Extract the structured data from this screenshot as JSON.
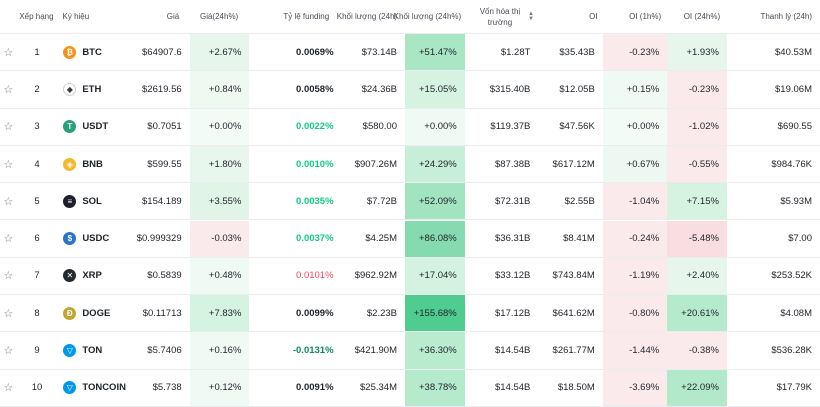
{
  "header": {
    "rank": "Xếp hạng",
    "symbol": "Ký hiệu",
    "price": "Giá",
    "change": "Giá(24h%)",
    "funding": "Tỷ lệ funding",
    "volume": "Khối lượng (24h)",
    "volume_change": "Khối lượng (24h%)",
    "market_cap": "Vốn hóa thị trường",
    "oi": "OI",
    "oi_1h": "OI (1h%)",
    "oi_24h": "OI (24h%)",
    "liquidation": "Thanh lý (24h)"
  },
  "colors": {
    "pos_light": "#ebf8f0",
    "pos_mid": "#d4f3e1",
    "pos_strong": "#a8e6c4",
    "pos_max": "#5ed29a",
    "neg_light": "#fbeaec",
    "funding_pos": "#0ecb81",
    "funding_neg": "#f6465d"
  },
  "rows": [
    {
      "rank": "1",
      "symbol": "BTC",
      "icon": "btc-icon",
      "icon_color": "#f7931a",
      "glyph": "₿",
      "price": "$64907.6",
      "change": "+2.67%",
      "change_bg": "#e6f6ec",
      "funding": "0.0069%",
      "funding_tone": "dark",
      "volume": "$73.14B",
      "volume_change": "+51.47%",
      "volume_change_bg": "#a8e6c4",
      "market_cap": "$1.28T",
      "oi": "$35.43B",
      "oi_1h": "-0.23%",
      "oi_1h_bg": "#fbeaec",
      "oi_24h": "+1.93%",
      "oi_24h_bg": "#e6f6ec",
      "liquidation": "$40.53M"
    },
    {
      "rank": "2",
      "symbol": "ETH",
      "icon": "eth-icon",
      "icon_color": "#ffffff",
      "glyph": "◆",
      "price": "$2619.56",
      "change": "+0.84%",
      "change_bg": "#eef9f2",
      "funding": "0.0058%",
      "funding_tone": "dark",
      "volume": "$24.36B",
      "volume_change": "+15.05%",
      "volume_change_bg": "#d6f3e2",
      "market_cap": "$315.40B",
      "oi": "$12.05B",
      "oi_1h": "+0.15%",
      "oi_1h_bg": "#f0faf4",
      "oi_24h": "-0.23%",
      "oi_24h_bg": "#fbeaec",
      "liquidation": "$19.06M"
    },
    {
      "rank": "3",
      "symbol": "USDT",
      "icon": "usdt-icon",
      "icon_color": "#26a17b",
      "glyph": "T",
      "price": "$0.7051",
      "change": "+0.00%",
      "change_bg": "#f3fbf6",
      "funding": "0.0022%",
      "funding_tone": "pos",
      "volume": "$580.00",
      "volume_change": "+0.00%",
      "volume_change_bg": "#f0faf4",
      "market_cap": "$119.37B",
      "oi": "$47.56K",
      "oi_1h": "+0.00%",
      "oi_1h_bg": "#f3fbf6",
      "oi_24h": "-1.02%",
      "oi_24h_bg": "#fbeaec",
      "liquidation": "$690.55"
    },
    {
      "rank": "4",
      "symbol": "BNB",
      "icon": "bnb-icon",
      "icon_color": "#f3ba2f",
      "glyph": "◈",
      "price": "$599.55",
      "change": "+1.80%",
      "change_bg": "#e8f7ee",
      "funding": "0.0010%",
      "funding_tone": "pos",
      "volume": "$907.26M",
      "volume_change": "+24.29%",
      "volume_change_bg": "#c6eed8",
      "market_cap": "$87.38B",
      "oi": "$617.12M",
      "oi_1h": "+0.67%",
      "oi_1h_bg": "#ecf8f1",
      "oi_24h": "-0.55%",
      "oi_24h_bg": "#fbeaec",
      "liquidation": "$984.76K"
    },
    {
      "rank": "5",
      "symbol": "SOL",
      "icon": "sol-icon",
      "icon_color": "#1e1e2e",
      "glyph": "≡",
      "price": "$154.189",
      "change": "+3.55%",
      "change_bg": "#e0f4e8",
      "funding": "0.0035%",
      "funding_tone": "pos",
      "volume": "$7.72B",
      "volume_change": "+52.09%",
      "volume_change_bg": "#a3e4c0",
      "market_cap": "$72.31B",
      "oi": "$2.55B",
      "oi_1h": "-1.04%",
      "oi_1h_bg": "#fbeaec",
      "oi_24h": "+7.15%",
      "oi_24h_bg": "#d6f3e2",
      "liquidation": "$5.93M"
    },
    {
      "rank": "6",
      "symbol": "USDC",
      "icon": "usdc-icon",
      "icon_color": "#2775ca",
      "glyph": "$",
      "price": "$0.999329",
      "change": "-0.03%",
      "change_bg": "#fbeaec",
      "funding": "0.0037%",
      "funding_tone": "pos",
      "volume": "$4.25M",
      "volume_change": "+86.08%",
      "volume_change_bg": "#86daaf",
      "market_cap": "$36.31B",
      "oi": "$8.41M",
      "oi_1h": "-0.24%",
      "oi_1h_bg": "#fbeaec",
      "oi_24h": "-5.48%",
      "oi_24h_bg": "#f8dde1",
      "liquidation": "$7.00"
    },
    {
      "rank": "7",
      "symbol": "XRP",
      "icon": "xrp-icon",
      "icon_color": "#23292f",
      "glyph": "✕",
      "price": "$0.5839",
      "change": "+0.48%",
      "change_bg": "#f0faf4",
      "funding": "0.0101%",
      "funding_tone": "neg",
      "volume": "$962.92M",
      "volume_change": "+17.04%",
      "volume_change_bg": "#d3f2e0",
      "market_cap": "$33.12B",
      "oi": "$743.84M",
      "oi_1h": "-1.19%",
      "oi_1h_bg": "#fbeaec",
      "oi_24h": "+2.40%",
      "oi_24h_bg": "#e6f6ec",
      "liquidation": "$253.52K"
    },
    {
      "rank": "8",
      "symbol": "DOGE",
      "icon": "doge-icon",
      "icon_color": "#c2a633",
      "glyph": "Ð",
      "price": "$0.11713",
      "change": "+7.83%",
      "change_bg": "#d4f3e1",
      "funding": "0.0099%",
      "funding_tone": "dark",
      "volume": "$2.23B",
      "volume_change": "+155.68%",
      "volume_change_bg": "#4fcc8f",
      "market_cap": "$17.12B",
      "oi": "$641.62M",
      "oi_1h": "-0.80%",
      "oi_1h_bg": "#fbeaec",
      "oi_24h": "+20.61%",
      "oi_24h_bg": "#b6eacd",
      "liquidation": "$4.08M"
    },
    {
      "rank": "9",
      "symbol": "TON",
      "icon": "ton-icon",
      "icon_color": "#0098ea",
      "glyph": "▽",
      "price": "$5.7406",
      "change": "+0.16%",
      "change_bg": "#f0faf4",
      "funding": "-0.0131%",
      "funding_tone": "negdark",
      "volume": "$421.90M",
      "volume_change": "+36.30%",
      "volume_change_bg": "#b9ebcf",
      "market_cap": "$14.54B",
      "oi": "$261.77M",
      "oi_1h": "-1.44%",
      "oi_1h_bg": "#fbeaec",
      "oi_24h": "-0.38%",
      "oi_24h_bg": "#fbeaec",
      "liquidation": "$536.28K"
    },
    {
      "rank": "10",
      "symbol": "TONCOIN",
      "icon": "toncoin-icon",
      "icon_color": "#0098ea",
      "glyph": "▽",
      "price": "$5.738",
      "change": "+0.12%",
      "change_bg": "#f0faf4",
      "funding": "0.0091%",
      "funding_tone": "dark",
      "volume": "$25.34M",
      "volume_change": "+38.78%",
      "volume_change_bg": "#b6eacd",
      "market_cap": "$14.54B",
      "oi": "$18.50M",
      "oi_1h": "-3.69%",
      "oi_1h_bg": "#fbeaec",
      "oi_24h": "+22.09%",
      "oi_24h_bg": "#b3e9cb",
      "liquidation": "$17.79K"
    }
  ]
}
